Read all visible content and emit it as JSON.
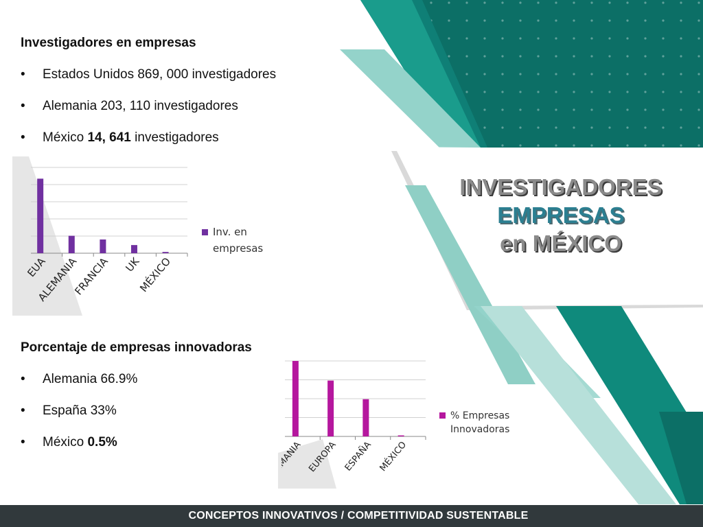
{
  "colors": {
    "teal_dark": "#0f7f76",
    "teal_mid": "#1a9c8c",
    "teal_light": "#94d3ca",
    "bar_purple": "#7030a0",
    "bar_magenta": "#b5179e",
    "footer_bg": "#31393c"
  },
  "section1": {
    "heading": "Investigadores en empresas",
    "bullets": [
      {
        "pre": "Estados Unidos 869, 000 investigadores",
        "bold": "",
        "post": ""
      },
      {
        "pre": "Alemania  203, 110 investigadores",
        "bold": "",
        "post": ""
      },
      {
        "pre": "México ",
        "bold": "14, 641",
        "post": " investigadores"
      }
    ]
  },
  "section2": {
    "heading": "Porcentaje de empresas innovadoras",
    "bullets": [
      {
        "pre": "Alemania 66.9%",
        "bold": ""
      },
      {
        "pre": "España 33%",
        "bold": ""
      },
      {
        "pre": "México ",
        "bold": "0.5%"
      }
    ]
  },
  "title": {
    "line1": "INVESTIGADORES",
    "line2": "EMPRESAS",
    "line3": "en MÉXICO"
  },
  "footer": {
    "text": "CONCEPTOS INNOVATIVOS / COMPETITIVIDAD SUSTENTABLE"
  },
  "chart_data": [
    {
      "type": "bar",
      "categories": [
        "EUA",
        "ALEMANIA",
        "FRANCIA",
        "UK",
        "MÉXICO"
      ],
      "series": [
        {
          "name": "Inv. en empresas",
          "values": [
            869000,
            203110,
            160000,
            95000,
            14641
          ]
        }
      ],
      "title": "",
      "ylim": [
        0,
        1000000
      ],
      "grid": true,
      "legend": "right"
    },
    {
      "type": "bar",
      "categories": [
        "ALEMANIA",
        "EUROPA",
        "ESPAÑA",
        "MÉXICO"
      ],
      "series": [
        {
          "name": "% Empresas Innovadoras",
          "values": [
            66.9,
            49.5,
            33,
            0.5
          ]
        }
      ],
      "title": "",
      "ylim": [
        0,
        66.9
      ],
      "grid": true,
      "legend": "right"
    }
  ]
}
